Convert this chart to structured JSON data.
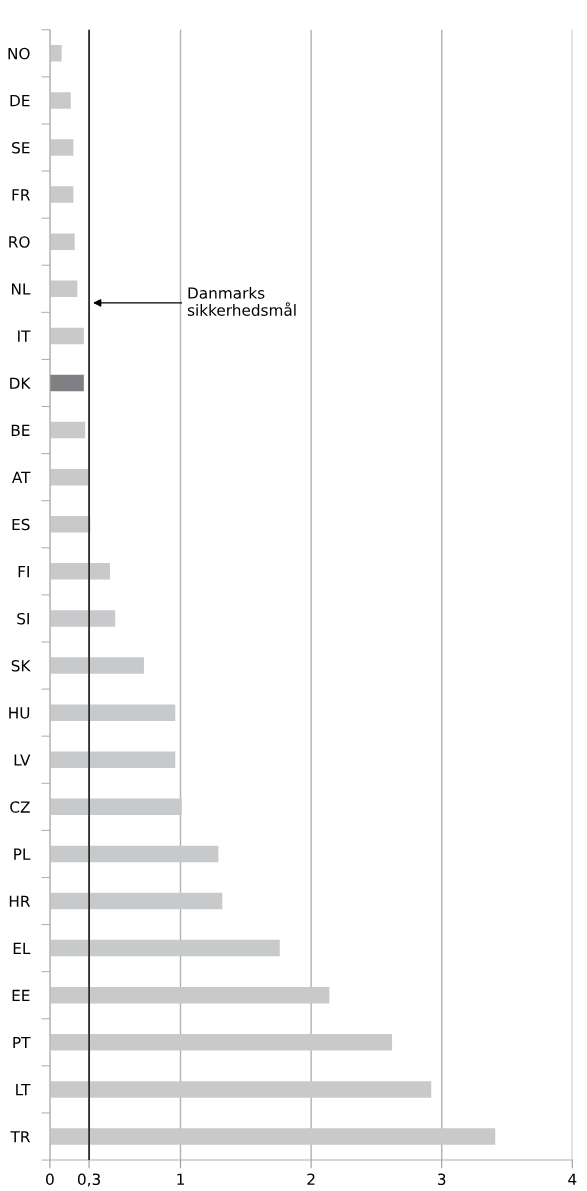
{
  "chart_data": {
    "type": "bar",
    "orientation": "horizontal",
    "categories": [
      "NO",
      "DE",
      "SE",
      "FR",
      "RO",
      "NL",
      "IT",
      "DK",
      "BE",
      "AT",
      "ES",
      "FI",
      "SI",
      "SK",
      "HU",
      "LV",
      "CZ",
      "PL",
      "HR",
      "EL",
      "EE",
      "PT",
      "LT",
      "TR"
    ],
    "values": [
      0.09,
      0.16,
      0.18,
      0.18,
      0.19,
      0.21,
      0.26,
      0.26,
      0.27,
      0.3,
      0.31,
      0.46,
      0.5,
      0.72,
      0.96,
      0.96,
      1.01,
      1.29,
      1.32,
      1.76,
      2.14,
      2.62,
      2.92,
      3.41
    ],
    "colors": [
      "#c8c9cb",
      "#c8c9cb",
      "#c8c9cb",
      "#c8c9cb",
      "#c8c9cb",
      "#c8c9cb",
      "#c8c9cb",
      "#808084",
      "#c8c9cb",
      "#c8c9cb",
      "#c8c9cb",
      "#c8c9cb",
      "#c8c9cb",
      "#c8c9cb",
      "#c8c9cb",
      "#c8c9cb",
      "#c8c9cb",
      "#c8c9cb",
      "#c8c9cb",
      "#c8c9cb",
      "#c8c9cb",
      "#c8c9cb",
      "#c8c9cb",
      "#c8c9cb"
    ],
    "xlim": [
      0,
      4
    ],
    "xticks": [
      0,
      {
        "value": 0.3,
        "label": "0,3"
      },
      1,
      2,
      3,
      4
    ],
    "grid": "x",
    "ref_lines": [
      {
        "axis": "x",
        "value": 0.3,
        "label": "Danmarks\nsikkerhedsmål",
        "color": "#000000"
      }
    ]
  }
}
